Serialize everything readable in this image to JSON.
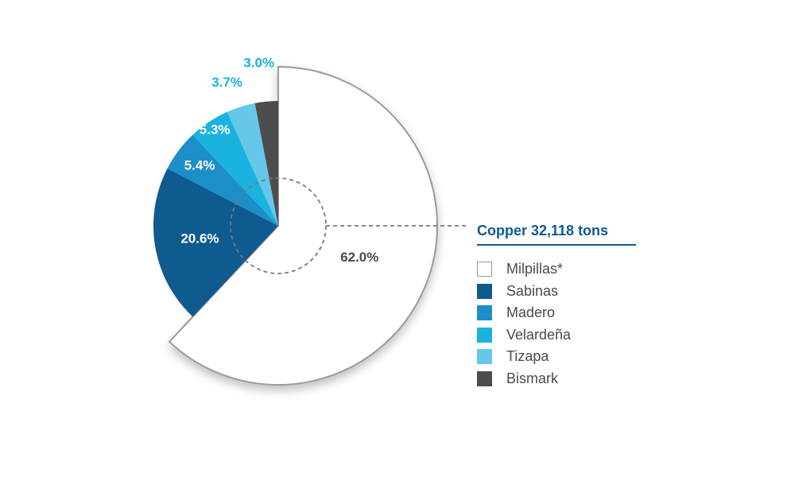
{
  "chart_data": {
    "type": "pie",
    "title": "Copper 32,118 tons",
    "slices": [
      {
        "name": "Milpillas*",
        "value": 62.0,
        "label": "62.0%",
        "color": "#ffffff",
        "label_color": "#4a4a4a"
      },
      {
        "name": "Sabinas",
        "value": 20.6,
        "label": "20.6%",
        "color": "#0f5a8f",
        "label_color": "#ffffff"
      },
      {
        "name": "Madero",
        "value": 5.4,
        "label": "5.4%",
        "color": "#1c8fc9",
        "label_color": "#ffffff"
      },
      {
        "name": "Velardeña",
        "value": 5.3,
        "label": "5.3%",
        "color": "#1ab3e0",
        "label_color": "#ffffff"
      },
      {
        "name": "Tizapa",
        "value": 3.7,
        "label": "3.7%",
        "color": "#66c7ea",
        "label_color": "#1ab3e0"
      },
      {
        "name": "Bismark",
        "value": 3.0,
        "label": "3.0%",
        "color": "#4d4d4f",
        "label_color": "#1ab3e0"
      }
    ],
    "legend_position": "right"
  }
}
